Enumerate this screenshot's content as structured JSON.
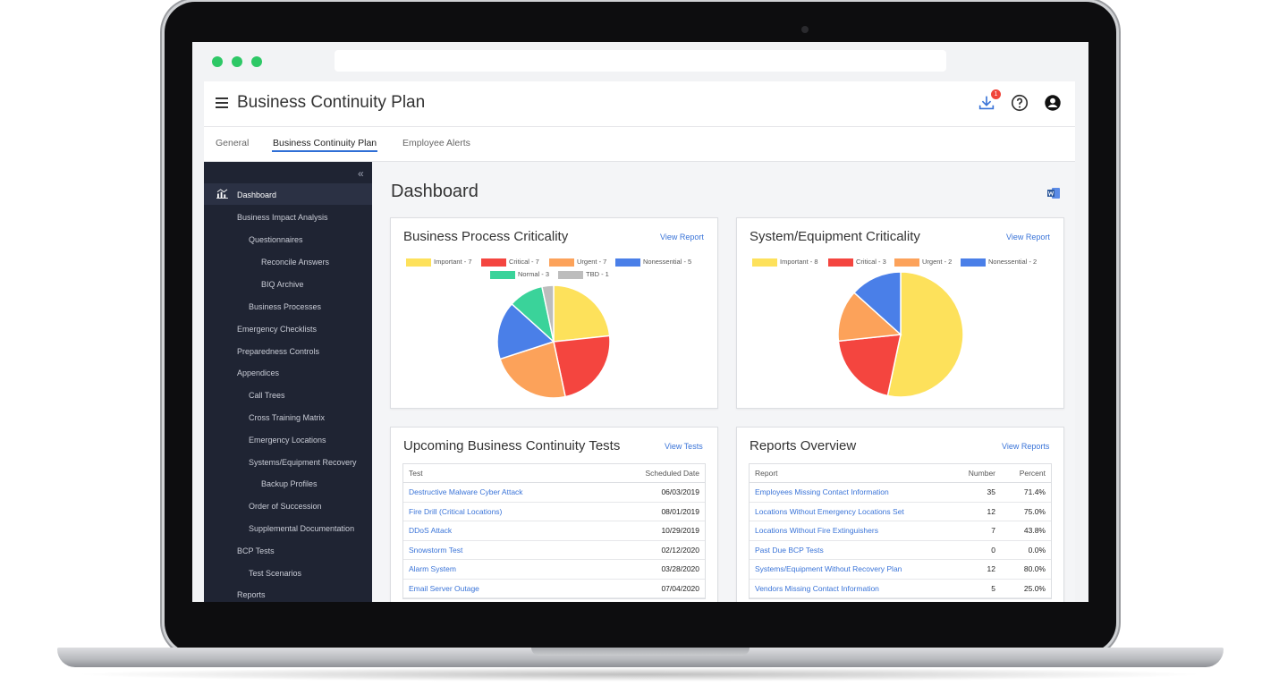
{
  "app": {
    "title": "Business Continuity Plan",
    "download_badge": "1"
  },
  "tabs": [
    {
      "label": "General"
    },
    {
      "label": "Business Continuity Plan"
    },
    {
      "label": "Employee Alerts"
    }
  ],
  "sidebar": {
    "collapse_glyph": "«",
    "items": [
      {
        "label": "Dashboard"
      },
      {
        "label": "Business Impact Analysis"
      },
      {
        "label": "Questionnaires"
      },
      {
        "label": "Reconcile Answers"
      },
      {
        "label": "BIQ Archive"
      },
      {
        "label": "Business Processes"
      },
      {
        "label": "Emergency Checklists"
      },
      {
        "label": "Preparedness Controls"
      },
      {
        "label": "Appendices"
      },
      {
        "label": "Call Trees"
      },
      {
        "label": "Cross Training Matrix"
      },
      {
        "label": "Emergency Locations"
      },
      {
        "label": "Systems/Equipment Recovery"
      },
      {
        "label": "Backup Profiles"
      },
      {
        "label": "Order of Succession"
      },
      {
        "label": "Supplemental Documentation"
      },
      {
        "label": "BCP Tests"
      },
      {
        "label": "Test Scenarios"
      },
      {
        "label": "Reports"
      }
    ]
  },
  "main": {
    "title": "Dashboard"
  },
  "colors": {
    "important": "#fde15b",
    "critical": "#f4453f",
    "urgent": "#fca25a",
    "nonessential": "#4a7fe8",
    "normal": "#3ad39a",
    "tbd": "#bdbdbd"
  },
  "cards": {
    "bpc": {
      "title": "Business Process Criticality",
      "link": "View Report",
      "legend": [
        "Important - 7",
        "Critical - 7",
        "Urgent - 7",
        "Nonessential - 5",
        "Normal - 3",
        "TBD - 1"
      ]
    },
    "sec": {
      "title": "System/Equipment Criticality",
      "link": "View Report",
      "legend": [
        "Important - 8",
        "Critical - 3",
        "Urgent - 2",
        "Nonessential - 2"
      ]
    },
    "tests": {
      "title": "Upcoming Business Continuity Tests",
      "link": "View Tests",
      "headers": [
        "Test",
        "Scheduled Date"
      ],
      "rows": [
        [
          "Destructive Malware Cyber Attack",
          "06/03/2019"
        ],
        [
          "Fire Drill (Critical Locations)",
          "08/01/2019"
        ],
        [
          "DDoS Attack",
          "10/29/2019"
        ],
        [
          "Snowstorm Test",
          "02/12/2020"
        ],
        [
          "Alarm System",
          "03/28/2020"
        ],
        [
          "Email Server Outage",
          "07/04/2020"
        ]
      ]
    },
    "reports": {
      "title": "Reports Overview",
      "link": "View Reports",
      "headers": [
        "Report",
        "Number",
        "Percent"
      ],
      "rows": [
        [
          "Employees Missing Contact Information",
          "35",
          "71.4%"
        ],
        [
          "Locations Without Emergency Locations Set",
          "12",
          "75.0%"
        ],
        [
          "Locations Without Fire Extinguishers",
          "7",
          "43.8%"
        ],
        [
          "Past Due BCP Tests",
          "0",
          "0.0%"
        ],
        [
          "Systems/Equipment Without Recovery Plan",
          "12",
          "80.0%"
        ],
        [
          "Vendors Missing Contact Information",
          "5",
          "25.0%"
        ]
      ]
    }
  },
  "chart_data": [
    {
      "type": "pie",
      "categories": [
        "Important",
        "Critical",
        "Urgent",
        "Nonessential",
        "Normal",
        "TBD"
      ],
      "values": [
        7,
        7,
        7,
        5,
        3,
        1
      ]
    },
    {
      "type": "pie",
      "categories": [
        "Important",
        "Critical",
        "Urgent",
        "Nonessential"
      ],
      "values": [
        8,
        3,
        2,
        2
      ]
    }
  ]
}
